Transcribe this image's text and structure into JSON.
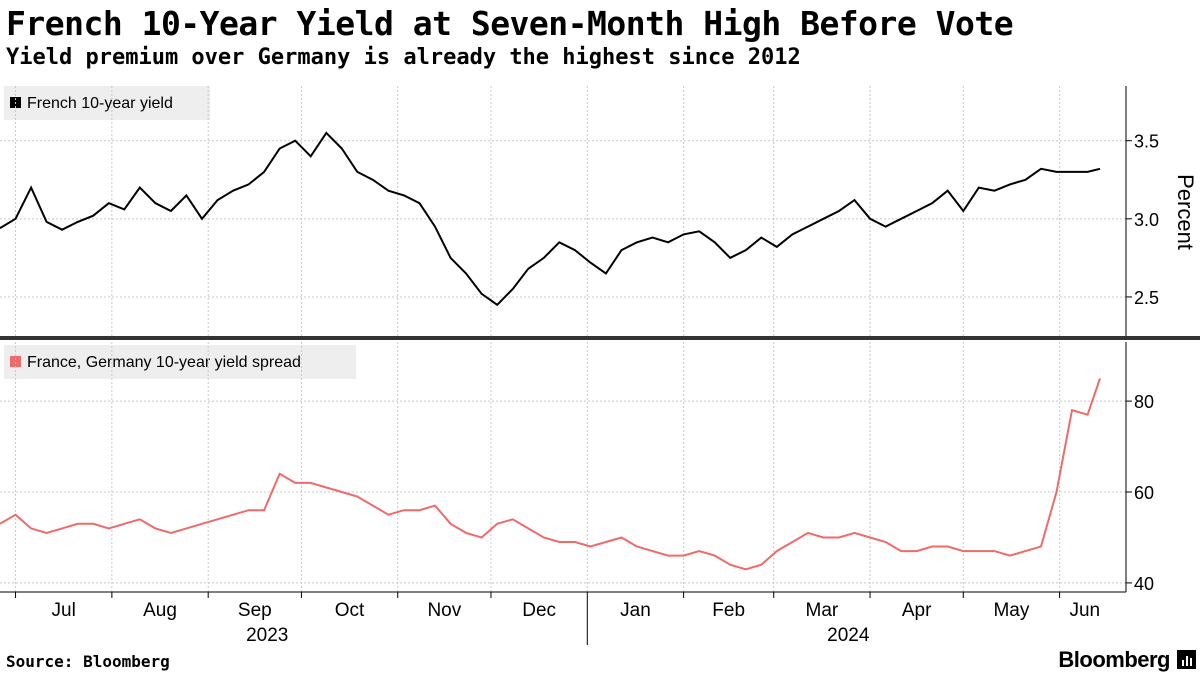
{
  "header": {
    "title": "French 10-Year Yield at Seven-Month High Before Vote",
    "subtitle": "Yield premium over Germany is already the highest since 2012"
  },
  "footer": {
    "source": "Source: Bloomberg",
    "brand": "Bloomberg"
  },
  "colors": {
    "yield_line": "#000000",
    "spread_line": "#f06a6a",
    "grid": "#c8c8c8"
  },
  "chart_data": [
    {
      "type": "line",
      "title": "French 10-year yield",
      "legend": "French 10-year yield",
      "legend_position": "top-left",
      "ylabel": "Percent",
      "ylim": [
        2.25,
        3.85
      ],
      "yticks": [
        2.5,
        3.0,
        3.5
      ],
      "ytick_labels": [
        "2.5",
        "3.0",
        "3.5"
      ],
      "grid": true,
      "x": [
        "2023-06-26",
        "2023-07-01",
        "2023-07-06",
        "2023-07-11",
        "2023-07-16",
        "2023-07-21",
        "2023-07-26",
        "2023-07-31",
        "2023-08-05",
        "2023-08-10",
        "2023-08-15",
        "2023-08-20",
        "2023-08-25",
        "2023-08-30",
        "2023-09-04",
        "2023-09-09",
        "2023-09-14",
        "2023-09-19",
        "2023-09-24",
        "2023-09-29",
        "2023-10-04",
        "2023-10-09",
        "2023-10-14",
        "2023-10-19",
        "2023-10-24",
        "2023-10-29",
        "2023-11-03",
        "2023-11-08",
        "2023-11-13",
        "2023-11-18",
        "2023-11-23",
        "2023-11-28",
        "2023-12-03",
        "2023-12-08",
        "2023-12-13",
        "2023-12-18",
        "2023-12-23",
        "2023-12-28",
        "2024-01-02",
        "2024-01-07",
        "2024-01-12",
        "2024-01-17",
        "2024-01-22",
        "2024-01-27",
        "2024-02-01",
        "2024-02-06",
        "2024-02-11",
        "2024-02-16",
        "2024-02-21",
        "2024-02-26",
        "2024-03-02",
        "2024-03-07",
        "2024-03-12",
        "2024-03-17",
        "2024-03-22",
        "2024-03-27",
        "2024-04-01",
        "2024-04-06",
        "2024-04-11",
        "2024-04-16",
        "2024-04-21",
        "2024-04-26",
        "2024-05-01",
        "2024-05-06",
        "2024-05-11",
        "2024-05-16",
        "2024-05-21",
        "2024-05-26",
        "2024-05-31",
        "2024-06-05",
        "2024-06-10",
        "2024-06-14"
      ],
      "values": [
        2.94,
        3.0,
        3.2,
        2.98,
        2.93,
        2.98,
        3.02,
        3.1,
        3.06,
        3.2,
        3.1,
        3.05,
        3.15,
        3.0,
        3.12,
        3.18,
        3.22,
        3.3,
        3.45,
        3.5,
        3.4,
        3.55,
        3.45,
        3.3,
        3.25,
        3.18,
        3.15,
        3.1,
        2.95,
        2.75,
        2.65,
        2.52,
        2.45,
        2.55,
        2.68,
        2.75,
        2.85,
        2.8,
        2.72,
        2.65,
        2.8,
        2.85,
        2.88,
        2.85,
        2.9,
        2.92,
        2.85,
        2.75,
        2.8,
        2.88,
        2.82,
        2.9,
        2.95,
        3.0,
        3.05,
        3.12,
        3.0,
        2.95,
        3.0,
        3.05,
        3.1,
        3.18,
        3.05,
        3.2,
        3.18,
        3.22,
        3.25,
        3.32,
        3.3,
        3.3,
        3.3,
        3.32
      ],
      "xaxis": {
        "month_labels": [
          "Jul",
          "Aug",
          "Sep",
          "Oct",
          "Nov",
          "Dec",
          "Jan",
          "Feb",
          "Mar",
          "Apr",
          "May",
          "Jun"
        ],
        "year_labels": [
          "2023",
          "2024"
        ]
      }
    },
    {
      "type": "line",
      "title": "France, Germany 10-year yield spread",
      "legend": "France, Germany 10-year yield spread",
      "legend_position": "top-left",
      "ylim": [
        38,
        93
      ],
      "yticks": [
        40,
        60,
        80
      ],
      "ytick_labels": [
        "40",
        "60",
        "80"
      ],
      "grid": true,
      "x": [
        "2023-06-26",
        "2023-07-01",
        "2023-07-06",
        "2023-07-11",
        "2023-07-16",
        "2023-07-21",
        "2023-07-26",
        "2023-07-31",
        "2023-08-05",
        "2023-08-10",
        "2023-08-15",
        "2023-08-20",
        "2023-08-25",
        "2023-08-30",
        "2023-09-04",
        "2023-09-09",
        "2023-09-14",
        "2023-09-19",
        "2023-09-24",
        "2023-09-29",
        "2023-10-04",
        "2023-10-09",
        "2023-10-14",
        "2023-10-19",
        "2023-10-24",
        "2023-10-29",
        "2023-11-03",
        "2023-11-08",
        "2023-11-13",
        "2023-11-18",
        "2023-11-23",
        "2023-11-28",
        "2023-12-03",
        "2023-12-08",
        "2023-12-13",
        "2023-12-18",
        "2023-12-23",
        "2023-12-28",
        "2024-01-02",
        "2024-01-07",
        "2024-01-12",
        "2024-01-17",
        "2024-01-22",
        "2024-01-27",
        "2024-02-01",
        "2024-02-06",
        "2024-02-11",
        "2024-02-16",
        "2024-02-21",
        "2024-02-26",
        "2024-03-02",
        "2024-03-07",
        "2024-03-12",
        "2024-03-17",
        "2024-03-22",
        "2024-03-27",
        "2024-04-01",
        "2024-04-06",
        "2024-04-11",
        "2024-04-16",
        "2024-04-21",
        "2024-04-26",
        "2024-05-01",
        "2024-05-06",
        "2024-05-11",
        "2024-05-16",
        "2024-05-21",
        "2024-05-26",
        "2024-05-31",
        "2024-06-05",
        "2024-06-10",
        "2024-06-14"
      ],
      "values": [
        53,
        55,
        52,
        51,
        52,
        53,
        53,
        52,
        53,
        54,
        52,
        51,
        52,
        53,
        54,
        55,
        56,
        56,
        64,
        62,
        62,
        61,
        60,
        59,
        57,
        55,
        56,
        56,
        57,
        53,
        51,
        50,
        53,
        54,
        52,
        50,
        49,
        49,
        48,
        49,
        50,
        48,
        47,
        46,
        46,
        47,
        46,
        44,
        43,
        44,
        47,
        49,
        51,
        50,
        50,
        51,
        50,
        49,
        47,
        47,
        48,
        48,
        47,
        47,
        47,
        46,
        47,
        48,
        60,
        78,
        77,
        85
      ]
    }
  ]
}
